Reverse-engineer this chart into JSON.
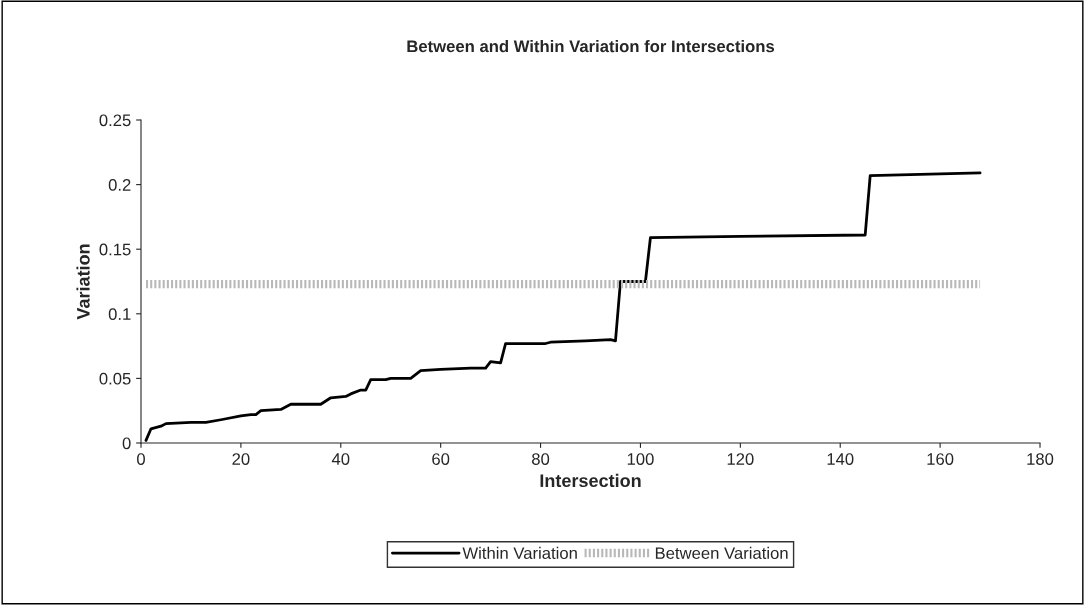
{
  "chart_data": {
    "type": "line",
    "title": "Between and Within Variation for Intersections",
    "xlabel": "Intersection",
    "ylabel": "Variation",
    "xlim": [
      0,
      180
    ],
    "xticks": [
      0,
      20,
      40,
      60,
      80,
      100,
      120,
      140,
      160,
      180
    ],
    "ylim": [
      0,
      0.25
    ],
    "yticks": [
      0,
      0.05,
      0.1,
      0.15,
      0.2,
      0.25
    ],
    "grid": false,
    "legend": "bottom",
    "marker": "none",
    "series": [
      {
        "name": "Within Variation",
        "color": "#000000",
        "line_style": "solid",
        "x": [
          1,
          2,
          4,
          5,
          10,
          13,
          16,
          20,
          22,
          23,
          24,
          28,
          30,
          36,
          38,
          41,
          42,
          44,
          45,
          46,
          49,
          50,
          54,
          56,
          60,
          66,
          69,
          70,
          72,
          73,
          81,
          82,
          89,
          94,
          95,
          96,
          101,
          102,
          120,
          145,
          146,
          168
        ],
        "values": [
          0.002,
          0.011,
          0.013,
          0.015,
          0.016,
          0.016,
          0.018,
          0.021,
          0.022,
          0.022,
          0.025,
          0.026,
          0.03,
          0.03,
          0.035,
          0.036,
          0.038,
          0.041,
          0.041,
          0.049,
          0.049,
          0.05,
          0.05,
          0.056,
          0.057,
          0.058,
          0.058,
          0.063,
          0.062,
          0.077,
          0.077,
          0.078,
          0.079,
          0.08,
          0.079,
          0.125,
          0.125,
          0.159,
          0.16,
          0.161,
          0.207,
          0.209
        ]
      },
      {
        "name": "Between Variation",
        "color": "#b8b8b8",
        "line_style": "dotted",
        "x": [
          1,
          168
        ],
        "values": [
          0.123,
          0.123
        ]
      }
    ]
  }
}
